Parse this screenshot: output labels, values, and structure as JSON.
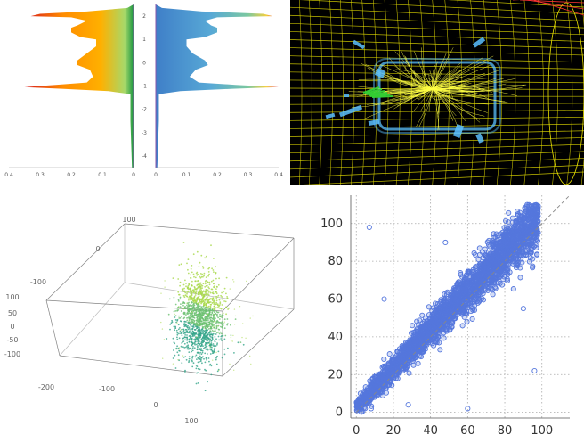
{
  "chart_data": [
    {
      "type": "area",
      "layout": "mirrored histogram",
      "left_axis_ticks": [
        "0.4",
        "0.3",
        "0.2",
        "0.1",
        "0"
      ],
      "right_axis_ticks": [
        "0",
        "0.1",
        "0.2",
        "0.3",
        "0.4"
      ],
      "y_ticks": [
        "2",
        "1",
        "0",
        "-1",
        "-2",
        "-3",
        "-4"
      ],
      "ylim": [
        -4.5,
        2.5
      ],
      "xlim": [
        0,
        0.4
      ],
      "left_profile": [
        [
          2.5,
          0
        ],
        [
          2.35,
          0.02
        ],
        [
          2.2,
          0.15
        ],
        [
          2.1,
          0.3
        ],
        [
          2.0,
          0.33
        ],
        [
          1.95,
          0.2
        ],
        [
          1.8,
          0.15
        ],
        [
          1.6,
          0.18
        ],
        [
          1.5,
          0.2
        ],
        [
          1.3,
          0.2
        ],
        [
          1.1,
          0.17
        ],
        [
          1.0,
          0.12
        ],
        [
          0.7,
          0.12
        ],
        [
          0.4,
          0.15
        ],
        [
          0.1,
          0.18
        ],
        [
          -0.1,
          0.18
        ],
        [
          -0.3,
          0.14
        ],
        [
          -0.6,
          0.13
        ],
        [
          -0.85,
          0.15
        ],
        [
          -0.95,
          0.25
        ],
        [
          -1.05,
          0.35
        ],
        [
          -1.12,
          0.23
        ],
        [
          -1.22,
          0.08
        ],
        [
          -1.35,
          0.01
        ],
        [
          -2.5,
          0.01
        ],
        [
          -4.5,
          0.005
        ]
      ],
      "right_profile": [
        [
          2.5,
          0
        ],
        [
          2.35,
          0.02
        ],
        [
          2.2,
          0.15
        ],
        [
          2.1,
          0.35
        ],
        [
          2.0,
          0.38
        ],
        [
          1.95,
          0.2
        ],
        [
          1.8,
          0.16
        ],
        [
          1.6,
          0.18
        ],
        [
          1.5,
          0.2
        ],
        [
          1.3,
          0.2
        ],
        [
          1.1,
          0.16
        ],
        [
          1.0,
          0.1
        ],
        [
          0.7,
          0.1
        ],
        [
          0.4,
          0.12
        ],
        [
          0.1,
          0.16
        ],
        [
          -0.1,
          0.17
        ],
        [
          -0.3,
          0.13
        ],
        [
          -0.6,
          0.11
        ],
        [
          -0.85,
          0.14
        ],
        [
          -0.95,
          0.26
        ],
        [
          -1.05,
          0.4
        ],
        [
          -1.12,
          0.25
        ],
        [
          -1.22,
          0.08
        ],
        [
          -1.35,
          0.01
        ],
        [
          -2.5,
          0.01
        ],
        [
          -4.5,
          0.005
        ]
      ],
      "colors": {
        "axis": "#8855aa",
        "peak": "#d7191c",
        "mid": "#ff8c00",
        "low_left": "#1a9641",
        "right_fill": "#4a90c8"
      }
    },
    {
      "type": "other",
      "description_kind": "3d event display",
      "colors": {
        "grid": "#e8e000",
        "tracks": "#ffff44",
        "modules": "#5bc0ff",
        "muon": "#33cc33",
        "background": "#000000",
        "corner_lines": "#ff3333"
      }
    },
    {
      "type": "scatter",
      "dimensions": 3,
      "x_ticks": [
        "-200",
        "-100",
        "0",
        "100"
      ],
      "y_ticks": [
        "100",
        "0",
        "-100"
      ],
      "z_ticks": [
        "100",
        "50",
        "0",
        "-50",
        "-100"
      ],
      "cluster": {
        "center": [
          60,
          40,
          0
        ],
        "spread": [
          18,
          18,
          45
        ],
        "n": 1500
      },
      "colors": {
        "box": "#777777",
        "points_low": "#a8d84a",
        "points_mid": "#6cc070",
        "points_high": "#35a58a"
      }
    },
    {
      "type": "scatter",
      "x_ticks": [
        "0",
        "20",
        "40",
        "60",
        "80",
        "100"
      ],
      "y_ticks": [
        "0",
        "20",
        "40",
        "60",
        "80",
        "100"
      ],
      "xlim": [
        -3,
        115
      ],
      "ylim": [
        -3,
        115
      ],
      "grid": true,
      "marker": "open-circle",
      "reference_line": "y=x dashed",
      "trend": {
        "slope": 1.02,
        "intercept": 3,
        "spread_low": 4,
        "spread_high": 14,
        "x_range": [
          0,
          98
        ],
        "n": 2600
      },
      "outliers": [
        [
          7,
          98
        ],
        [
          28,
          4
        ],
        [
          60,
          2
        ],
        [
          96,
          22
        ],
        [
          15,
          60
        ],
        [
          48,
          90
        ],
        [
          90,
          55
        ],
        [
          26,
          27
        ],
        [
          8,
          2
        ]
      ],
      "colors": {
        "points": "#5577dd",
        "grid": "#aaaaaa",
        "diagonal": "#888888"
      }
    }
  ]
}
